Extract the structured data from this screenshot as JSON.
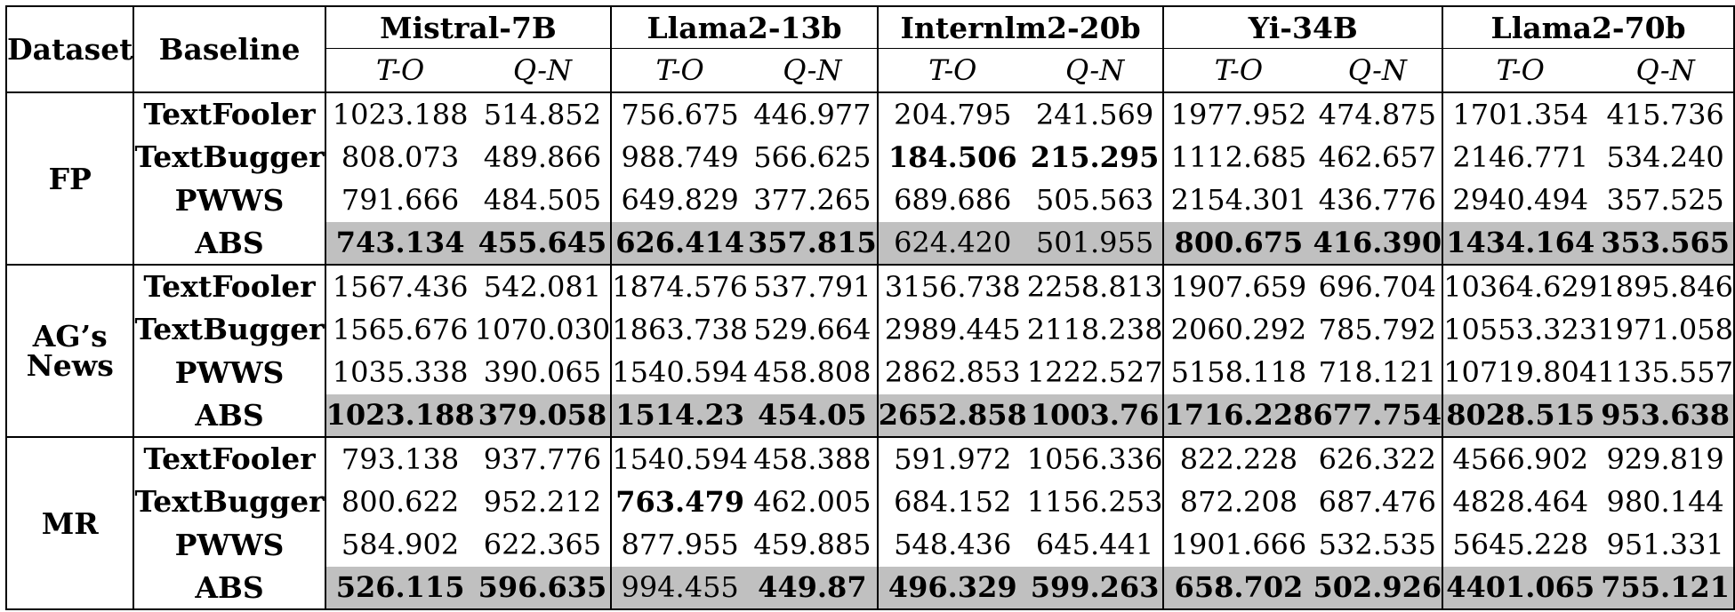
{
  "header": {
    "dataset": "Dataset",
    "baseline": "Baseline",
    "models": [
      "Mistral-7B",
      "Llama2-13b",
      "Internlm2-20b",
      "Yi-34B",
      "Llama2-70b"
    ],
    "metrics": [
      "T-O",
      "Q-N"
    ]
  },
  "groups": [
    {
      "dataset": "FP",
      "rows": [
        {
          "baseline": "TextFooler",
          "values": [
            "1023.188",
            "514.852",
            "756.675",
            "446.977",
            "204.795",
            "241.569",
            "1977.952",
            "474.875",
            "1701.354",
            "415.736"
          ],
          "bold": []
        },
        {
          "baseline": "TextBugger",
          "values": [
            "808.073",
            "489.866",
            "988.749",
            "566.625",
            "184.506",
            "215.295",
            "1112.685",
            "462.657",
            "2146.771",
            "534.240"
          ],
          "bold": [
            4,
            5
          ]
        },
        {
          "baseline": "PWWS",
          "values": [
            "791.666",
            "484.505",
            "649.829",
            "377.265",
            "689.686",
            "505.563",
            "2154.301",
            "436.776",
            "2940.494",
            "357.525"
          ],
          "bold": []
        },
        {
          "baseline": "ABS",
          "values": [
            "743.134",
            "455.645",
            "626.414",
            "357.815",
            "624.420",
            "501.955",
            "800.675",
            "416.390",
            "1434.164",
            "353.565"
          ],
          "bold": [
            0,
            1,
            2,
            3,
            6,
            7,
            8,
            9
          ]
        }
      ]
    },
    {
      "dataset": "AG’s\nNews",
      "rows": [
        {
          "baseline": "TextFooler",
          "values": [
            "1567.436",
            "542.081",
            "1874.576",
            "537.791",
            "3156.738",
            "2258.813",
            "1907.659",
            "696.704",
            "10364.629",
            "1895.846"
          ],
          "bold": []
        },
        {
          "baseline": "TextBugger",
          "values": [
            "1565.676",
            "1070.030",
            "1863.738",
            "529.664",
            "2989.445",
            "2118.238",
            "2060.292",
            "785.792",
            "10553.323",
            "1971.058"
          ],
          "bold": []
        },
        {
          "baseline": "PWWS",
          "values": [
            "1035.338",
            "390.065",
            "1540.594",
            "458.808",
            "2862.853",
            "1222.527",
            "5158.118",
            "718.121",
            "10719.804",
            "1135.557"
          ],
          "bold": []
        },
        {
          "baseline": "ABS",
          "values": [
            "1023.188",
            "379.058",
            "1514.23",
            "454.05",
            "2652.858",
            "1003.76",
            "1716.228",
            "677.754",
            "8028.515",
            "953.638"
          ],
          "bold": [
            0,
            1,
            2,
            3,
            4,
            5,
            6,
            7,
            8,
            9
          ]
        }
      ]
    },
    {
      "dataset": "MR",
      "rows": [
        {
          "baseline": "TextFooler",
          "values": [
            "793.138",
            "937.776",
            "1540.594",
            "458.388",
            "591.972",
            "1056.336",
            "822.228",
            "626.322",
            "4566.902",
            "929.819"
          ],
          "bold": []
        },
        {
          "baseline": "TextBugger",
          "values": [
            "800.622",
            "952.212",
            "763.479",
            "462.005",
            "684.152",
            "1156.253",
            "872.208",
            "687.476",
            "4828.464",
            "980.144"
          ],
          "bold": [
            2
          ]
        },
        {
          "baseline": "PWWS",
          "values": [
            "584.902",
            "622.365",
            "877.955",
            "459.885",
            "548.436",
            "645.441",
            "1901.666",
            "532.535",
            "5645.228",
            "951.331"
          ],
          "bold": []
        },
        {
          "baseline": "ABS",
          "values": [
            "526.115",
            "596.635",
            "994.455",
            "449.87",
            "496.329",
            "599.263",
            "658.702",
            "502.926",
            "4401.065",
            "755.121"
          ],
          "bold": [
            0,
            1,
            3,
            4,
            5,
            6,
            7,
            8,
            9
          ]
        }
      ]
    }
  ]
}
